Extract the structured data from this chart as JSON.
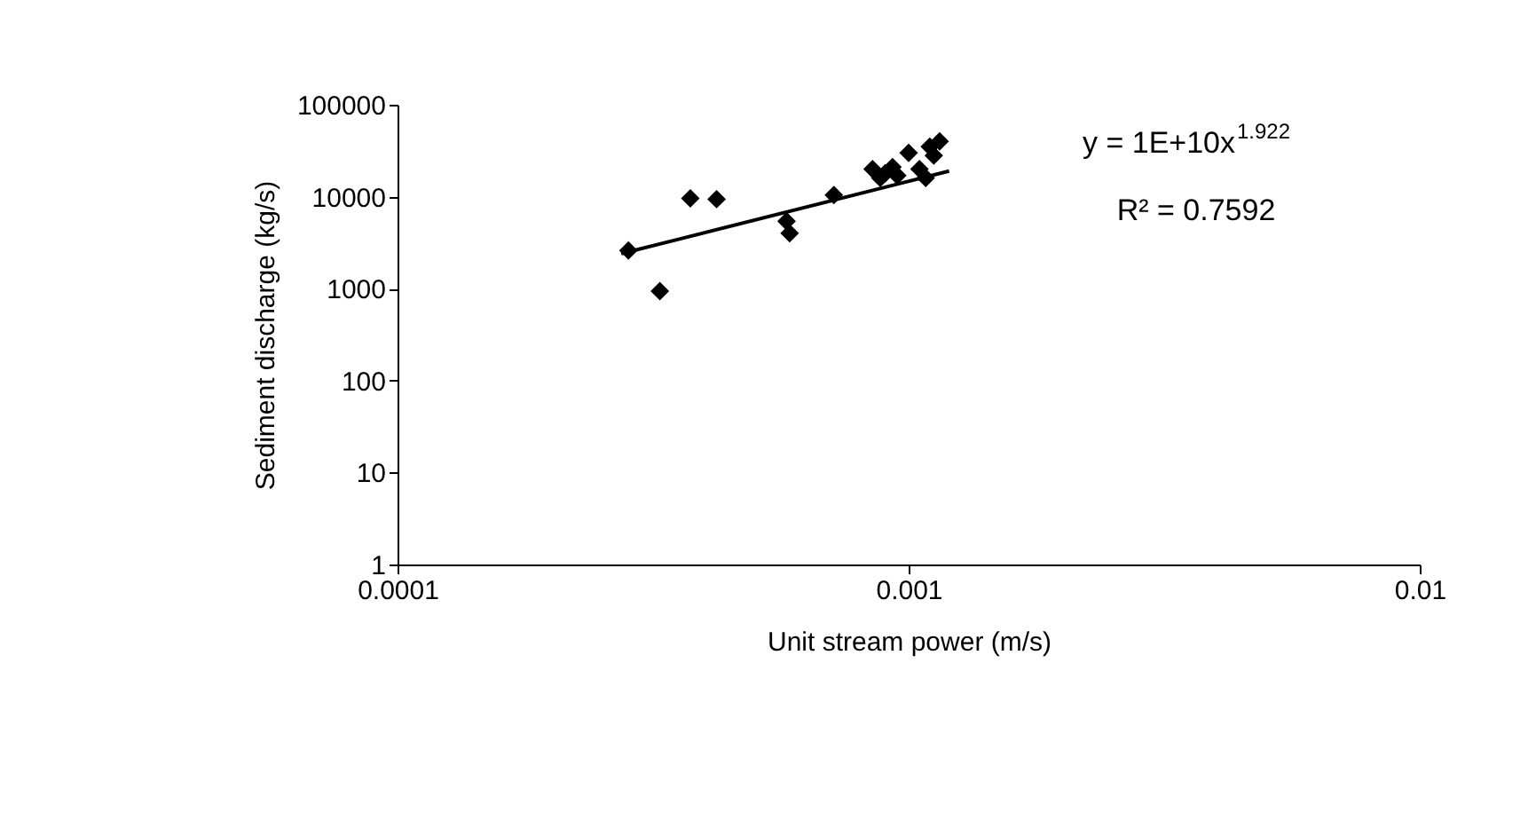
{
  "chart_data": {
    "type": "scatter",
    "xlabel": "Unit stream power (m/s)",
    "ylabel": "Sediment discharge (kg/s)",
    "log": "xy",
    "grid": false,
    "marker": "diamond",
    "xlim": [
      0.0001,
      0.01
    ],
    "xticks": [
      0.0001,
      0.001,
      0.01
    ],
    "ylim": [
      1,
      100000
    ],
    "yticks": [
      1,
      10,
      100,
      1000,
      10000,
      100000
    ],
    "annotations": [
      "y = 1E+10x$^{1.922}$",
      "R² = 0.7592"
    ],
    "series": [
      {
        "color": "#000000",
        "x": [
          0.000283,
          0.000326,
          0.000374,
          0.000421,
          0.000577,
          0.000585,
          0.000714,
          0.00085,
          0.00088,
          0.0009,
          0.00093,
          0.00095,
          0.001,
          0.00105,
          0.00108,
          0.0011,
          0.00112,
          0.00115
        ],
        "values": [
          2600,
          940,
          9600,
          9400,
          5400,
          4000,
          10400,
          20000,
          16000,
          18000,
          21000,
          17000,
          30000,
          20000,
          16000,
          35000,
          28000,
          40000
        ]
      },
      {
        "type": "line",
        "color": "#000000",
        "marker": "none",
        "x": [
          0.000274,
          0.0012
        ],
        "values": [
          2400,
          19000
        ]
      }
    ]
  }
}
